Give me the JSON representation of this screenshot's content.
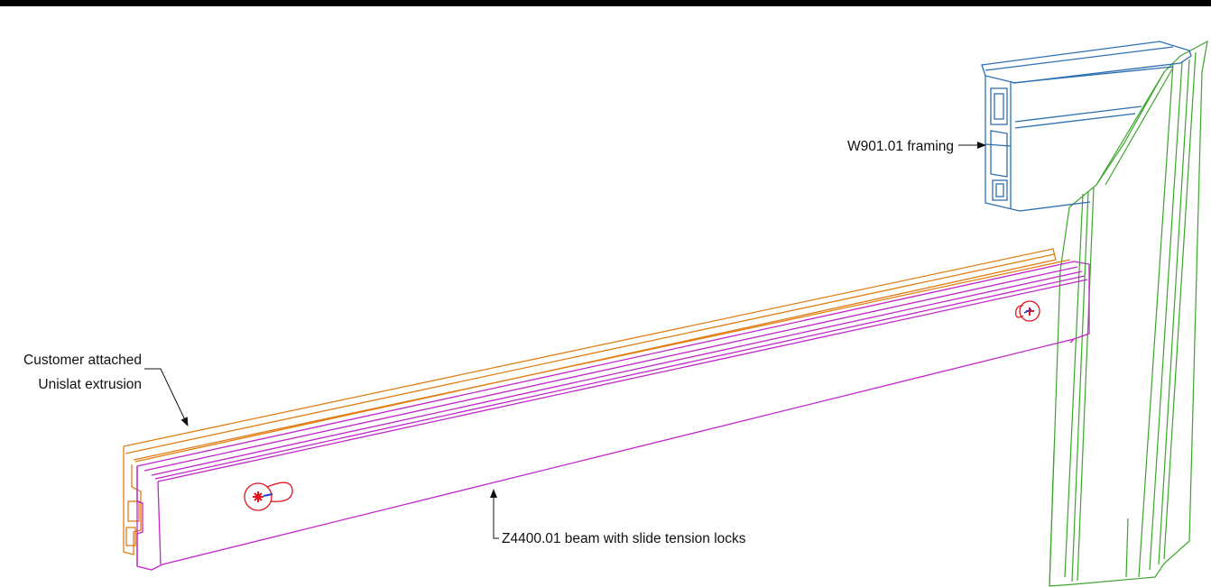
{
  "callouts": {
    "framing": "W901.01 framing",
    "extrusion_line1": "Customer attached",
    "extrusion_line2": "Unislat extrusion",
    "beam": "Z4400.01 beam with slide tension locks"
  },
  "colors": {
    "framing": "#2c6fb0",
    "post": "#3aa52a",
    "beam": "#c026c8",
    "extrusion": "#e07d14",
    "lock": "#e0141e",
    "leader": "#111111"
  }
}
